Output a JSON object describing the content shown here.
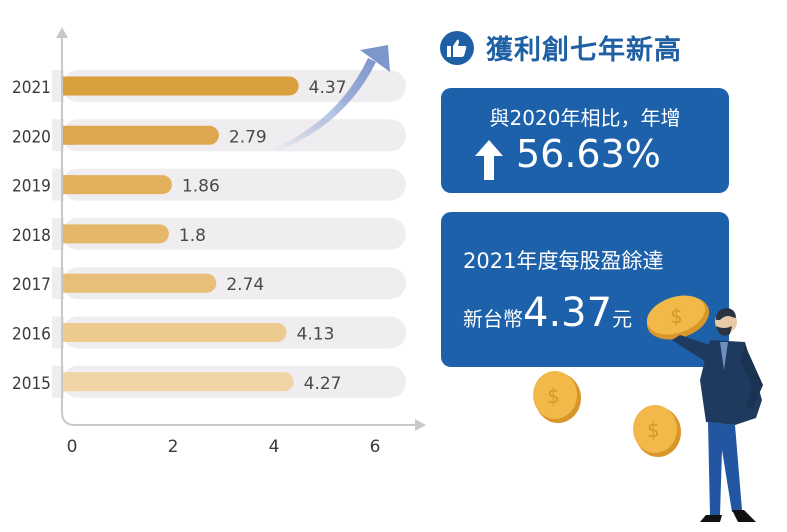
{
  "chart_data": {
    "type": "bar",
    "orientation": "horizontal",
    "categories": [
      "2021",
      "2020",
      "2019",
      "2018",
      "2017",
      "2016",
      "2015"
    ],
    "values": [
      4.37,
      2.79,
      1.86,
      1.8,
      2.74,
      4.13,
      4.27
    ],
    "value_labels": [
      "4.37",
      "2.79",
      "1.86",
      "1.8",
      "2.74",
      "4.13",
      "4.27"
    ],
    "x_ticks": [
      "0",
      "2",
      "4",
      "6"
    ],
    "x_tick_values": [
      0,
      2,
      4,
      6
    ],
    "xlim": [
      0,
      7
    ],
    "title": "",
    "xlabel": "",
    "ylabel": "",
    "bar_colors": [
      "#d9a03d",
      "#dea74d",
      "#e2b05c",
      "#e5b769",
      "#e8bf78",
      "#edca8e",
      "#f0d4a5"
    ],
    "track_color": "#efedef"
  },
  "header": {
    "title": "獲利創七年新高",
    "icon": "thumbs-up-icon"
  },
  "growth_box": {
    "line1": "與2020年相比，年增",
    "arrow_icon": "arrow-up-icon",
    "percent": "56.63%"
  },
  "eps_box": {
    "line1": "2021年度每股盈餘達",
    "prefix": "新台幣",
    "value": "4.37",
    "unit": "元"
  },
  "colors": {
    "accent_blue": "#1c61aa",
    "gold": "#e8a93a"
  }
}
